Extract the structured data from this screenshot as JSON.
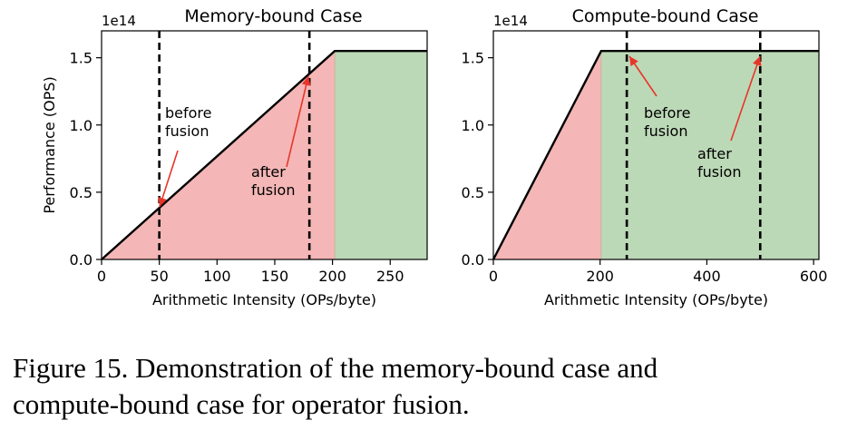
{
  "chart_data": [
    {
      "type": "area",
      "title": "Memory-bound Case",
      "xlabel": "Arithmetic Intensity (OPs/byte)",
      "ylabel": "Performance (OPS)",
      "y_multiplier": "1e14",
      "xlim": [
        0,
        282
      ],
      "ylim": [
        0,
        1.7
      ],
      "xticks": [
        0,
        50,
        100,
        150,
        200,
        250
      ],
      "yticks": [
        0.0,
        0.5,
        1.0,
        1.5
      ],
      "ytick_labels": [
        "0.0",
        "0.5",
        "1.0",
        "1.5"
      ],
      "roofline": {
        "ridge_x": 202,
        "peak": 1.55,
        "x_max": 282
      },
      "regions": [
        {
          "name": "memory-bound",
          "x_range": [
            0,
            202
          ],
          "color": "#f4b6b6"
        },
        {
          "name": "compute-bound",
          "x_range": [
            202,
            282
          ],
          "color": "#bcd9b7"
        }
      ],
      "markers": [
        {
          "label": [
            "before",
            "fusion"
          ],
          "x": 50
        },
        {
          "label": [
            "after",
            "fusion"
          ],
          "x": 180
        }
      ]
    },
    {
      "type": "area",
      "title": "Compute-bound Case",
      "xlabel": "Arithmetic Intensity (OPs/byte)",
      "ylabel": "",
      "y_multiplier": "1e14",
      "xlim": [
        0,
        610
      ],
      "ylim": [
        0,
        1.7
      ],
      "xticks": [
        0,
        200,
        400,
        600
      ],
      "yticks": [
        0.0,
        0.5,
        1.0,
        1.5
      ],
      "ytick_labels": [
        "0.0",
        "0.5",
        "1.0",
        "1.5"
      ],
      "roofline": {
        "ridge_x": 202,
        "peak": 1.55,
        "x_max": 610
      },
      "regions": [
        {
          "name": "memory-bound",
          "x_range": [
            0,
            202
          ],
          "color": "#f4b6b6"
        },
        {
          "name": "compute-bound",
          "x_range": [
            202,
            610
          ],
          "color": "#bcd9b7"
        }
      ],
      "markers": [
        {
          "label": [
            "before",
            "fusion"
          ],
          "x": 250
        },
        {
          "label": [
            "after",
            "fusion"
          ],
          "x": 500
        }
      ]
    }
  ],
  "caption": {
    "line1": "Figure 15.   Demonstration of the memory-bound case and",
    "line2": "compute-bound case for operator fusion."
  },
  "colors": {
    "arrow": "#e8352a",
    "line": "#000000"
  }
}
